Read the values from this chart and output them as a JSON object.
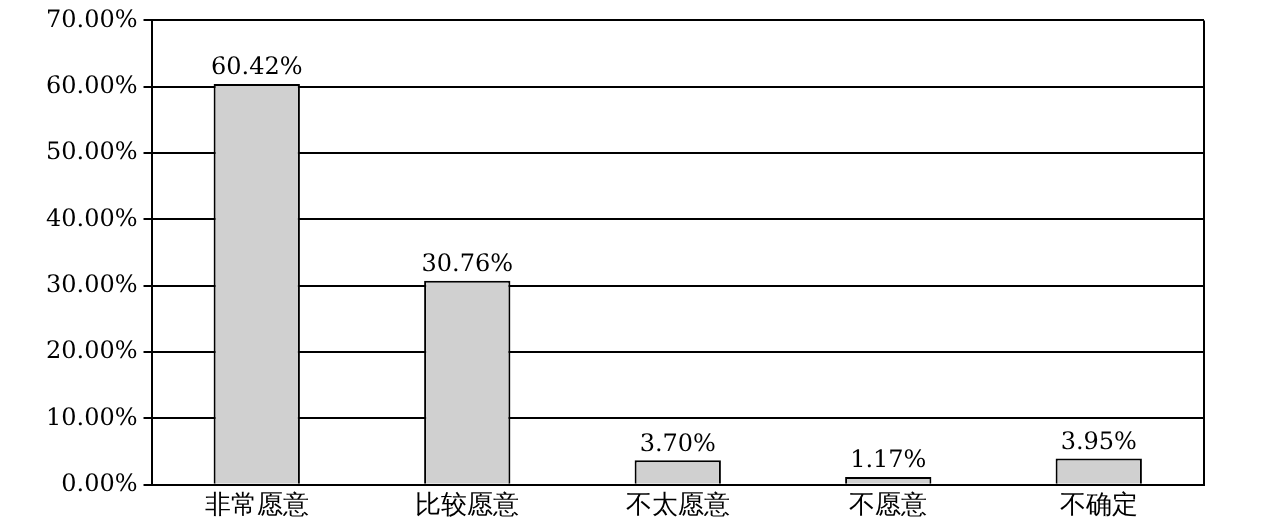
{
  "chart_data": {
    "type": "bar",
    "categories": [
      "非常愿意",
      "比较愿意",
      "不太愿意",
      "不愿意",
      "不确定"
    ],
    "values": [
      60.42,
      30.76,
      3.7,
      1.17,
      3.95
    ],
    "value_labels": [
      "60.42%",
      "30.76%",
      "3.70%",
      "1.17%",
      "3.95%"
    ],
    "color": "#d0d0d0",
    "ylim": [
      0,
      70
    ],
    "yticks": [
      {
        "value": 0,
        "label": "0.00%"
      },
      {
        "value": 10,
        "label": "10.00%"
      },
      {
        "value": 20,
        "label": "20.00%"
      },
      {
        "value": 30,
        "label": "30.00%"
      },
      {
        "value": 40,
        "label": "40.00%"
      },
      {
        "value": 50,
        "label": "50.00%"
      },
      {
        "value": 60,
        "label": "60.00%"
      },
      {
        "value": 70,
        "label": "70.00%"
      }
    ],
    "grid": "y",
    "legend": false
  }
}
